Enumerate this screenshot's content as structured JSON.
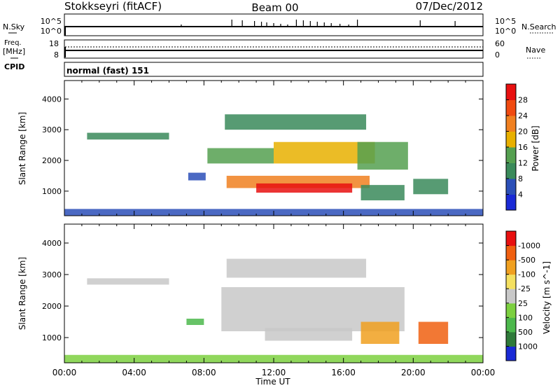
{
  "chart_data": {
    "type": "heatmap",
    "header": {
      "station": "Stokkseyri (fitACF)",
      "beam": "Beam 00",
      "date": "07/Dec/2012"
    },
    "time_axis": {
      "label": "Time UT",
      "ticks": [
        "00:00",
        "04:00",
        "08:00",
        "12:00",
        "16:00",
        "20:00",
        "00:00"
      ],
      "range_hours": [
        0,
        24
      ]
    },
    "noise_panel": {
      "left_label": "N.Sky",
      "left_ticks": [
        "10^5",
        "10^0"
      ],
      "right_ticks": [
        "10^5",
        "10^0"
      ],
      "right_label": "N.Search",
      "spike_hours": [
        6.7,
        9.6,
        10.2,
        10.9,
        11.3,
        11.6,
        12.0,
        12.4,
        12.8,
        13.3,
        13.7,
        14.1,
        14.5,
        14.9,
        15.3,
        15.8,
        16.3,
        16.8,
        20.4,
        22.4
      ]
    },
    "freq_panel": {
      "left_label_top": "Freq.",
      "left_label_unit": "[MHz]",
      "left_ticks": [
        "18",
        "8"
      ],
      "right_ticks": [
        "60",
        "0"
      ],
      "right_label": "Nave",
      "cpid_label": "CPID",
      "mode_text": "normal (fast) 151"
    },
    "power_panel": {
      "ylabel": "Slant Range [km]",
      "yticks": [
        1000,
        2000,
        3000,
        4000
      ],
      "ylim": [
        200,
        4600
      ],
      "colorbar_label": "Power [dB]",
      "colorbar_ticks": [
        "4",
        "8",
        "12",
        "16",
        "20",
        "24",
        "28"
      ],
      "colors": [
        "#1a2ad6",
        "#2b4fb8",
        "#3a8a5a",
        "#55a050",
        "#e8b000",
        "#f08020",
        "#f04a10",
        "#e81010"
      ],
      "regions": [
        {
          "t0": 1.3,
          "t1": 6.0,
          "r0": 2680,
          "r1": 2900,
          "level": 2
        },
        {
          "t0": 9.2,
          "t1": 17.3,
          "r0": 3000,
          "r1": 3500,
          "level": 2
        },
        {
          "t0": 8.2,
          "t1": 12.0,
          "r0": 1900,
          "r1": 2400,
          "level": 3
        },
        {
          "t0": 12.0,
          "t1": 17.8,
          "r0": 1900,
          "r1": 2600,
          "level": 4
        },
        {
          "t0": 16.8,
          "t1": 19.7,
          "r0": 1700,
          "r1": 2600,
          "level": 3
        },
        {
          "t0": 9.3,
          "t1": 17.5,
          "r0": 1100,
          "r1": 1500,
          "level": 5
        },
        {
          "t0": 11.0,
          "t1": 16.5,
          "r0": 950,
          "r1": 1250,
          "level": 7
        },
        {
          "t0": 7.1,
          "t1": 8.1,
          "r0": 1350,
          "r1": 1600,
          "level": 1
        },
        {
          "t0": 17.0,
          "t1": 19.5,
          "r0": 700,
          "r1": 1200,
          "level": 2
        },
        {
          "t0": 20.0,
          "t1": 22.0,
          "r0": 900,
          "r1": 1400,
          "level": 2
        },
        {
          "t0": 0.0,
          "t1": 24.0,
          "r0": 200,
          "r1": 420,
          "level": 1
        }
      ]
    },
    "velocity_panel": {
      "ylabel": "Slant Range [km]",
      "yticks": [
        1000,
        2000,
        3000,
        4000
      ],
      "ylim": [
        200,
        4600
      ],
      "colorbar_label": "Velocity [m s^-1]",
      "colorbar_ticks": [
        "1000",
        "500",
        "100",
        "25",
        "-25",
        "-100",
        "-500",
        "-1000"
      ],
      "colors": [
        "#1a2ad6",
        "#2f7a3a",
        "#4cb84c",
        "#7cd040",
        "#c8c8c8",
        "#f4e060",
        "#f0a020",
        "#f06010",
        "#e81010"
      ],
      "regions": [
        {
          "t0": 1.3,
          "t1": 6.0,
          "r0": 2680,
          "r1": 2880,
          "level": 4
        },
        {
          "t0": 9.3,
          "t1": 17.3,
          "r0": 2900,
          "r1": 3500,
          "level": 4
        },
        {
          "t0": 9.0,
          "t1": 19.5,
          "r0": 1200,
          "r1": 2600,
          "level": 4
        },
        {
          "t0": 11.5,
          "t1": 16.5,
          "r0": 900,
          "r1": 1300,
          "level": 4
        },
        {
          "t0": 7.0,
          "t1": 8.0,
          "r0": 1400,
          "r1": 1600,
          "level": 2
        },
        {
          "t0": 17.0,
          "t1": 19.2,
          "r0": 800,
          "r1": 1500,
          "level": 6
        },
        {
          "t0": 20.3,
          "t1": 22.0,
          "r0": 800,
          "r1": 1500,
          "level": 7
        },
        {
          "t0": 0.0,
          "t1": 24.0,
          "r0": 200,
          "r1": 450,
          "level": 3
        }
      ]
    }
  }
}
